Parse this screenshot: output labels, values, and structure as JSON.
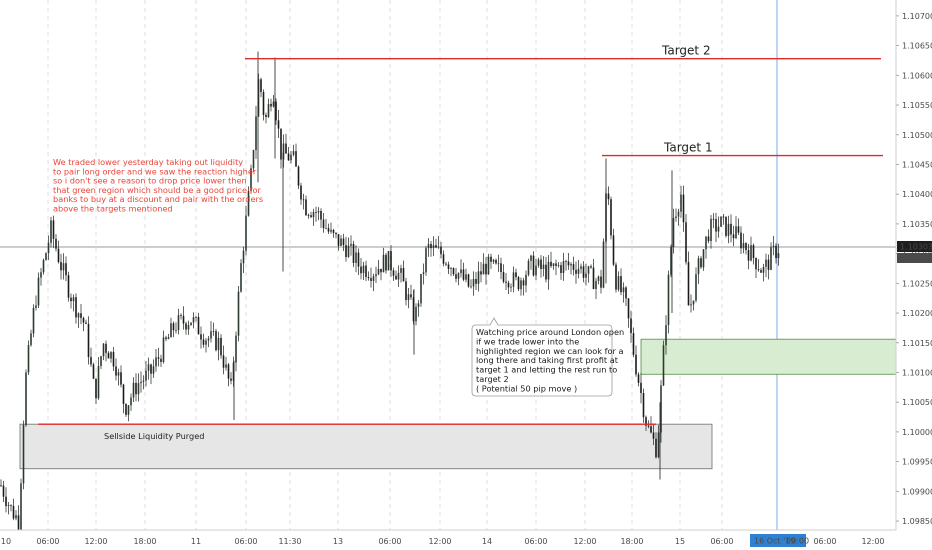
{
  "chart_data": {
    "type": "candlestick",
    "instrument_price_current": "1.10303",
    "countdown": "13:08",
    "y_range": [
      1.0984,
      1.1072
    ],
    "y_ticks": [
      "1.10700",
      "1.10650",
      "1.10600",
      "1.10550",
      "1.10500",
      "1.10450",
      "1.10400",
      "1.10350",
      "1.10300",
      "1.10250",
      "1.10200",
      "1.10150",
      "1.10100",
      "1.10050",
      "1.10000",
      "1.09950",
      "1.09900",
      "1.09850"
    ],
    "x_ticks": [
      "10",
      "06:00",
      "12:00",
      "18:00",
      "11",
      "06:00",
      "11:30",
      "13",
      "06:00",
      "12:00",
      "14",
      "06:00",
      "12:00",
      "18:00",
      "15",
      "06:00",
      "12:00",
      "18:00",
      "16 Oct '19",
      "00:00",
      "06:00",
      "12:00"
    ],
    "x_highlight_label": "16 Oct '19",
    "x_highlight_time": "00:00",
    "levels": [
      {
        "label": "Target 2",
        "price": 1.10628
      },
      {
        "label": "Target 1",
        "price": 1.10465
      },
      {
        "label": "",
        "price": 1.10013
      }
    ],
    "zones": [
      {
        "label": "Sellside Liquidity Purged",
        "top": 1.10013,
        "bottom": 1.09938,
        "color": "#e6e6e6"
      },
      {
        "label": "",
        "top": 1.10156,
        "bottom": 1.10097,
        "color": "#d7ecd1"
      }
    ],
    "annotation_left": [
      "We traded lower yesterday taking out liquidity",
      "to pair long order and we saw the reaction higher",
      "so i don't see a reason to drop price lower then",
      "that green region which should be a good price for",
      "banks to buy at a discount and pair with the orders",
      "above the targets mentioned"
    ],
    "annotation_callout": [
      "Watching price around London open",
      "if we trade lower into the",
      "highlighted region we can look for a",
      "long there and taking first profit at",
      "target 1 and letting the rest run to",
      "target 2",
      "( Potential 50 pip move )"
    ],
    "anchor_closes": [
      [
        0,
        1.0991
      ],
      [
        10,
        1.0987
      ],
      [
        18,
        1.0985
      ],
      [
        24,
        1.1008
      ],
      [
        34,
        1.1022
      ],
      [
        42,
        1.1028
      ],
      [
        50,
        1.1034
      ],
      [
        60,
        1.1028
      ],
      [
        72,
        1.1022
      ],
      [
        84,
        1.1018
      ],
      [
        94,
        1.1006
      ],
      [
        102,
        1.1015
      ],
      [
        114,
        1.1012
      ],
      [
        124,
        1.1004
      ],
      [
        136,
        1.1008
      ],
      [
        150,
        1.101
      ],
      [
        162,
        1.1014
      ],
      [
        174,
        1.1018
      ],
      [
        190,
        1.1019
      ],
      [
        204,
        1.1016
      ],
      [
        218,
        1.1015
      ],
      [
        230,
        1.1007
      ],
      [
        240,
        1.1028
      ],
      [
        250,
        1.1043
      ],
      [
        258,
        1.106
      ],
      [
        264,
        1.1052
      ],
      [
        272,
        1.1058
      ],
      [
        280,
        1.1047
      ],
      [
        292,
        1.1046
      ],
      [
        304,
        1.1038
      ],
      [
        316,
        1.1037
      ],
      [
        330,
        1.1033
      ],
      [
        346,
        1.1031
      ],
      [
        358,
        1.1028
      ],
      [
        372,
        1.1027
      ],
      [
        386,
        1.1029
      ],
      [
        400,
        1.1026
      ],
      [
        414,
        1.1019
      ],
      [
        426,
        1.1031
      ],
      [
        440,
        1.103
      ],
      [
        456,
        1.1027
      ],
      [
        470,
        1.1024
      ],
      [
        484,
        1.1028
      ],
      [
        500,
        1.1027
      ],
      [
        516,
        1.1025
      ],
      [
        530,
        1.1028
      ],
      [
        546,
        1.1027
      ],
      [
        560,
        1.1028
      ],
      [
        576,
        1.1028
      ],
      [
        590,
        1.1026
      ],
      [
        600,
        1.1025
      ],
      [
        606,
        1.1042
      ],
      [
        614,
        1.1026
      ],
      [
        624,
        1.1022
      ],
      [
        634,
        1.1012
      ],
      [
        646,
        1.1001
      ],
      [
        656,
        1.0997
      ],
      [
        664,
        1.1017
      ],
      [
        672,
        1.1036
      ],
      [
        680,
        1.104
      ],
      [
        688,
        1.102
      ],
      [
        698,
        1.1028
      ],
      [
        708,
        1.1034
      ],
      [
        720,
        1.1035
      ],
      [
        736,
        1.1033
      ],
      [
        750,
        1.103
      ],
      [
        762,
        1.1027
      ],
      [
        772,
        1.103
      ],
      [
        778,
        1.1031
      ]
    ]
  }
}
